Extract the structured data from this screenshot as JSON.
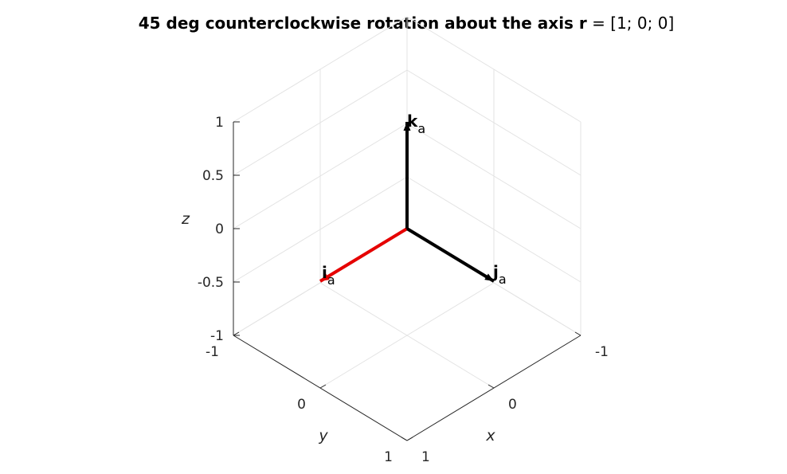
{
  "figure": {
    "title_main": "45 deg counterclockwise rotation about the axis ",
    "title_var": "r",
    "title_tail": " = [1; 0; 0]"
  },
  "chart_data": {
    "type": "line",
    "projection": "3d-isometric",
    "grid": true,
    "xlabel": "x",
    "ylabel": "y",
    "zlabel": "z",
    "xlim": [
      -1,
      1
    ],
    "ylim": [
      -1,
      1
    ],
    "zlim": [
      -1,
      1
    ],
    "x_ticks": [
      "-1",
      "0",
      "1"
    ],
    "y_ticks": [
      "-1",
      "0",
      "1"
    ],
    "z_ticks": [
      "-1",
      "-0.5",
      "0",
      "0.5",
      "1"
    ],
    "vectors": [
      {
        "base": "i",
        "sub": "a",
        "from": [
          0,
          0,
          0
        ],
        "to": [
          1,
          0,
          0
        ],
        "color": "#e60000"
      },
      {
        "base": "j",
        "sub": "a",
        "from": [
          0,
          0,
          0
        ],
        "to": [
          0,
          1,
          0
        ],
        "color": "#000000"
      },
      {
        "base": "k",
        "sub": "a",
        "from": [
          0,
          0,
          0
        ],
        "to": [
          0,
          0,
          1
        ],
        "color": "#000000"
      }
    ]
  }
}
